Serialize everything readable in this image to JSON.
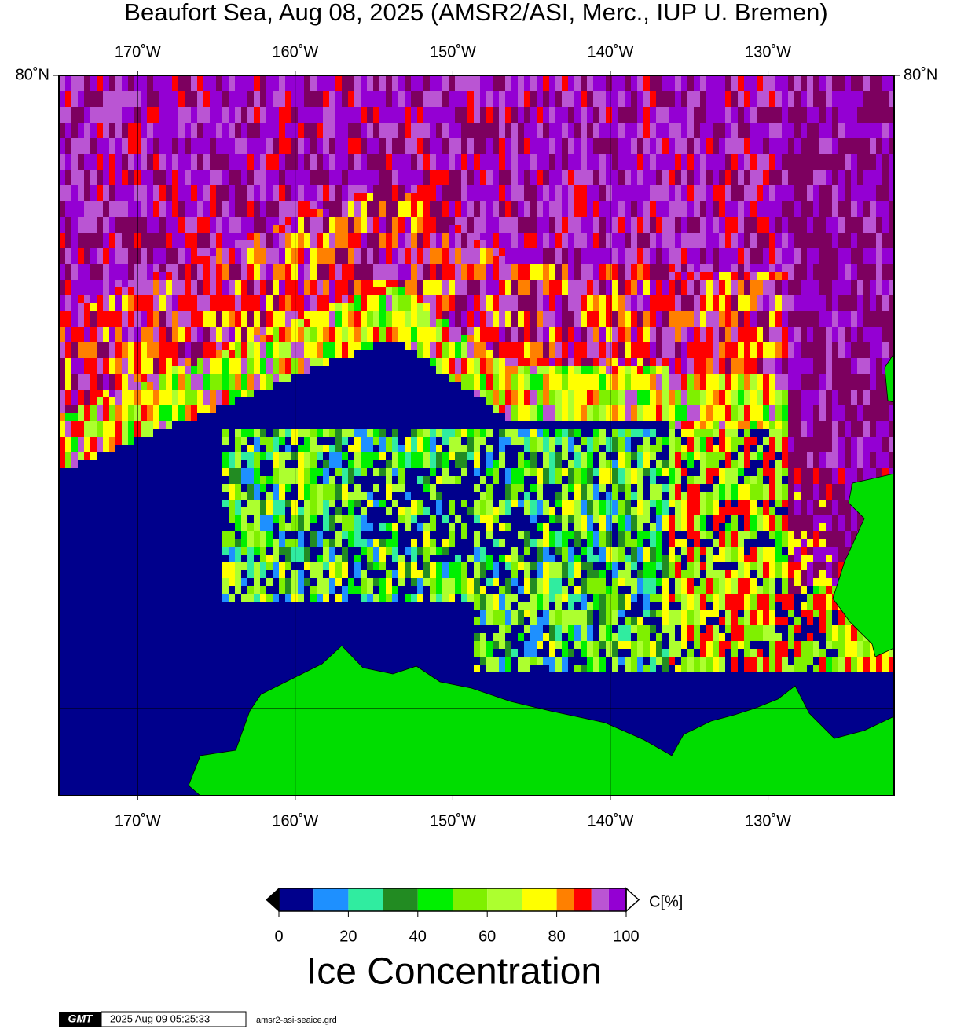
{
  "map": {
    "title": "Beaufort Sea, Aug 08, 2025 (AMSR2/ASI, Merc., IUP U. Bremen)",
    "lonlim": [
      -175,
      -122
    ],
    "lonticks": [
      {
        "value": -170,
        "label": "170˚W"
      },
      {
        "value": -160,
        "label": "160˚W"
      },
      {
        "value": -150,
        "label": "150˚W"
      },
      {
        "value": -140,
        "label": "140˚W"
      },
      {
        "value": -130,
        "label": "130˚W"
      }
    ],
    "latticks": [
      {
        "value": 80,
        "label": "80˚N"
      }
    ],
    "lat_grid": [
      70
    ]
  },
  "colorbar": {
    "bounds": [
      0,
      10,
      20,
      30,
      40,
      50,
      60,
      70,
      80,
      85,
      90,
      95,
      100
    ],
    "colors": [
      "#00008c",
      "#1e90ff",
      "#30eca0",
      "#228b22",
      "#00f000",
      "#7ff000",
      "#adff2f",
      "#ffff00",
      "#ff8000",
      "#ff0000",
      "#ba55d3",
      "#9400d3"
    ],
    "ticks": [
      0,
      20,
      40,
      60,
      80,
      100
    ],
    "unit": "C[%]",
    "label": "Ice Concentration"
  },
  "footer": {
    "logo": "GMT",
    "timestamp": "2025 Aug 09 05:25:33",
    "file": "amsr2-asi-seaice.grd"
  }
}
